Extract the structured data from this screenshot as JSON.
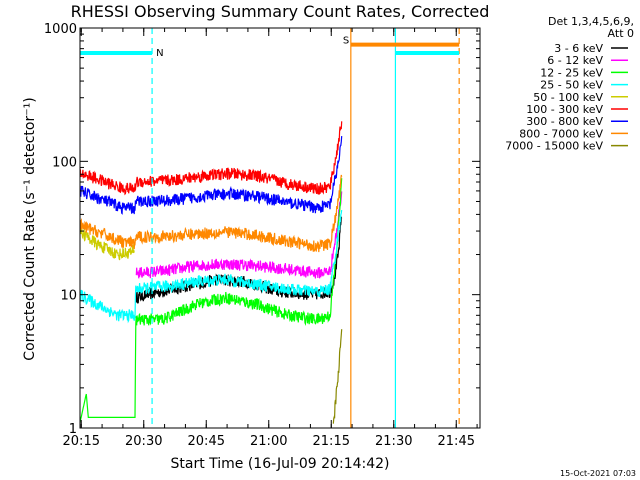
{
  "chart_data": {
    "type": "line",
    "title": "RHESSI Observing Summary Count Rates, Corrected",
    "xlabel": "Start Time (16-Jul-09 20:14:42)",
    "ylabel": "Corrected Count Rate (s⁻¹ detector⁻¹)",
    "yscale": "log",
    "xlim_minutes": [
      0,
      96
    ],
    "ylim": [
      1,
      1000
    ],
    "x_ticks": [
      {
        "m": 0.3,
        "label": "20:15"
      },
      {
        "m": 15.3,
        "label": "20:30"
      },
      {
        "m": 30.3,
        "label": "20:45"
      },
      {
        "m": 45.3,
        "label": "21:00"
      },
      {
        "m": 60.3,
        "label": "21:15"
      },
      {
        "m": 75.3,
        "label": "21:30"
      },
      {
        "m": 90.3,
        "label": "21:45"
      }
    ],
    "y_ticks": [
      {
        "v": 1,
        "label": "1"
      },
      {
        "v": 10,
        "label": "10"
      },
      {
        "v": 100,
        "label": "100"
      },
      {
        "v": 1000,
        "label": "1000"
      }
    ],
    "legend_header": [
      "Det 1,3,4,5,6,9,",
      "Att 0"
    ],
    "legend_position": "right",
    "series": [
      {
        "name": "3 - 6 keV",
        "color": "#000000",
        "points": [
          [
            13.5,
            9.5
          ],
          [
            16,
            10
          ],
          [
            25,
            11.5
          ],
          [
            33,
            13
          ],
          [
            40,
            12.5
          ],
          [
            48,
            10.5
          ],
          [
            56,
            10
          ],
          [
            60,
            10.5
          ],
          [
            61,
            13
          ],
          [
            62,
            20
          ],
          [
            62.8,
            40
          ]
        ]
      },
      {
        "name": "6 - 12 keV",
        "color": "#ff00ff",
        "points": [
          [
            13.5,
            14.5
          ],
          [
            20,
            15
          ],
          [
            28,
            16.5
          ],
          [
            35,
            17
          ],
          [
            42,
            16.5
          ],
          [
            50,
            15.5
          ],
          [
            57,
            14.5
          ],
          [
            60,
            15
          ],
          [
            61.5,
            28
          ],
          [
            62.8,
            60
          ]
        ]
      },
      {
        "name": "12 - 25 keV",
        "color": "#00ff00",
        "points": [
          [
            0,
            1.1
          ],
          [
            1.5,
            1.8
          ],
          [
            2,
            1.2
          ],
          [
            13.2,
            1.2
          ],
          [
            13.4,
            6.5
          ],
          [
            20,
            6.5
          ],
          [
            28,
            8.5
          ],
          [
            35,
            9.5
          ],
          [
            42,
            8.5
          ],
          [
            50,
            7
          ],
          [
            57,
            6.5
          ],
          [
            60,
            7
          ],
          [
            61.5,
            20
          ],
          [
            62.8,
            70
          ]
        ]
      },
      {
        "name": "25 - 50 keV",
        "color": "#00ffff",
        "points": [
          [
            0,
            10
          ],
          [
            4,
            8.5
          ],
          [
            9,
            7
          ],
          [
            13.2,
            7
          ],
          [
            13.4,
            11
          ],
          [
            20,
            11.5
          ],
          [
            28,
            12.5
          ],
          [
            35,
            13
          ],
          [
            42,
            12
          ],
          [
            50,
            11
          ],
          [
            57,
            10.5
          ],
          [
            60,
            11
          ],
          [
            61.5,
            22
          ],
          [
            62.8,
            45
          ]
        ]
      },
      {
        "name": "50 - 100 keV",
        "color": "#cccc00",
        "points": [
          [
            0,
            30
          ],
          [
            4,
            24
          ],
          [
            9,
            20
          ],
          [
            13,
            21
          ]
        ]
      },
      {
        "name": "100 - 300 keV",
        "color": "#ff0000",
        "points": [
          [
            0,
            82
          ],
          [
            5,
            72
          ],
          [
            10,
            63
          ],
          [
            13.2,
            62
          ],
          [
            13.4,
            70
          ],
          [
            22,
            72
          ],
          [
            30,
            78
          ],
          [
            36,
            81
          ],
          [
            42,
            78
          ],
          [
            50,
            68
          ],
          [
            57,
            62
          ],
          [
            60,
            64
          ],
          [
            61.5,
            110
          ],
          [
            62.8,
            200
          ]
        ]
      },
      {
        "name": "300 - 800 keV",
        "color": "#0000ff",
        "points": [
          [
            0,
            60
          ],
          [
            5,
            52
          ],
          [
            10,
            45
          ],
          [
            13.2,
            44
          ],
          [
            13.4,
            50
          ],
          [
            22,
            51
          ],
          [
            30,
            55
          ],
          [
            36,
            57
          ],
          [
            42,
            55
          ],
          [
            50,
            49
          ],
          [
            57,
            45
          ],
          [
            60,
            47
          ],
          [
            61.5,
            80
          ],
          [
            62.8,
            145
          ]
        ]
      },
      {
        "name": "800 - 7000 keV",
        "color": "#ff8800",
        "points": [
          [
            0,
            33
          ],
          [
            5,
            29
          ],
          [
            10,
            25
          ],
          [
            13.2,
            24
          ],
          [
            13.4,
            27
          ],
          [
            22,
            27.5
          ],
          [
            30,
            29
          ],
          [
            36,
            29.5
          ],
          [
            42,
            28
          ],
          [
            50,
            25
          ],
          [
            57,
            23
          ],
          [
            60,
            24
          ],
          [
            61.5,
            40
          ],
          [
            62.8,
            75
          ]
        ]
      },
      {
        "name": "7000 - 15000 keV",
        "color": "#888800",
        "points": [
          [
            60.8,
            1
          ],
          [
            61.5,
            1.8
          ],
          [
            62.2,
            3
          ],
          [
            62.8,
            6
          ]
        ]
      }
    ],
    "flags": [
      {
        "label": "N",
        "color": "#00ffff",
        "level": 650,
        "start": 0,
        "end": 17.3
      },
      {
        "label": "N",
        "color": "#00ffff",
        "level": 650,
        "start": 75.7,
        "end": 91
      },
      {
        "label": "S",
        "color": "#ff8800",
        "level": 750,
        "start": 65,
        "end": 91
      }
    ],
    "markers": [
      {
        "m": 17.3,
        "style": "dashed",
        "color": "#00ffff"
      },
      {
        "m": 75.7,
        "style": "solid",
        "color": "#00ffff"
      },
      {
        "m": 65,
        "style": "solid",
        "color": "#ff8800"
      },
      {
        "m": 91,
        "style": "dashed",
        "color": "#ff8800"
      }
    ],
    "timestamp": "15-Oct-2021 07:03"
  }
}
